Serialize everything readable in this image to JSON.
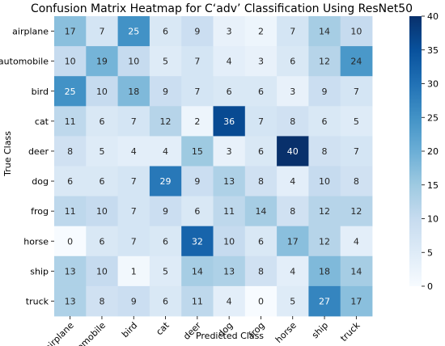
{
  "chart_data": {
    "type": "heatmap",
    "title": "Confusion Matrix Heatmap for C‘adv’ Classification Using ResNet50",
    "xlabel": "Predicted Class",
    "ylabel": "True Class",
    "x_categories": [
      "airplane",
      "automobile",
      "bird",
      "cat",
      "deer",
      "dog",
      "frog",
      "horse",
      "ship",
      "truck"
    ],
    "y_categories": [
      "airplane",
      "automobile",
      "bird",
      "cat",
      "deer",
      "dog",
      "frog",
      "horse",
      "ship",
      "truck"
    ],
    "values": [
      [
        17,
        7,
        25,
        6,
        9,
        3,
        2,
        7,
        14,
        10
      ],
      [
        10,
        19,
        10,
        5,
        7,
        4,
        3,
        6,
        12,
        24
      ],
      [
        25,
        10,
        18,
        9,
        7,
        6,
        6,
        3,
        9,
        7
      ],
      [
        11,
        6,
        7,
        12,
        2,
        36,
        7,
        8,
        6,
        5
      ],
      [
        8,
        5,
        4,
        4,
        15,
        3,
        6,
        40,
        8,
        7
      ],
      [
        6,
        6,
        7,
        29,
        9,
        13,
        8,
        4,
        10,
        8
      ],
      [
        11,
        10,
        7,
        9,
        6,
        11,
        14,
        8,
        12,
        12
      ],
      [
        0,
        6,
        7,
        6,
        32,
        10,
        6,
        17,
        12,
        4
      ],
      [
        13,
        10,
        1,
        5,
        14,
        13,
        8,
        4,
        18,
        14
      ],
      [
        13,
        8,
        9,
        6,
        11,
        4,
        0,
        5,
        27,
        17
      ]
    ],
    "colormap": "Blues",
    "vmin": 0,
    "vmax": 40,
    "colorbar_ticks": [
      0,
      5,
      10,
      15,
      20,
      25,
      30,
      35,
      40
    ],
    "annotated": true
  }
}
